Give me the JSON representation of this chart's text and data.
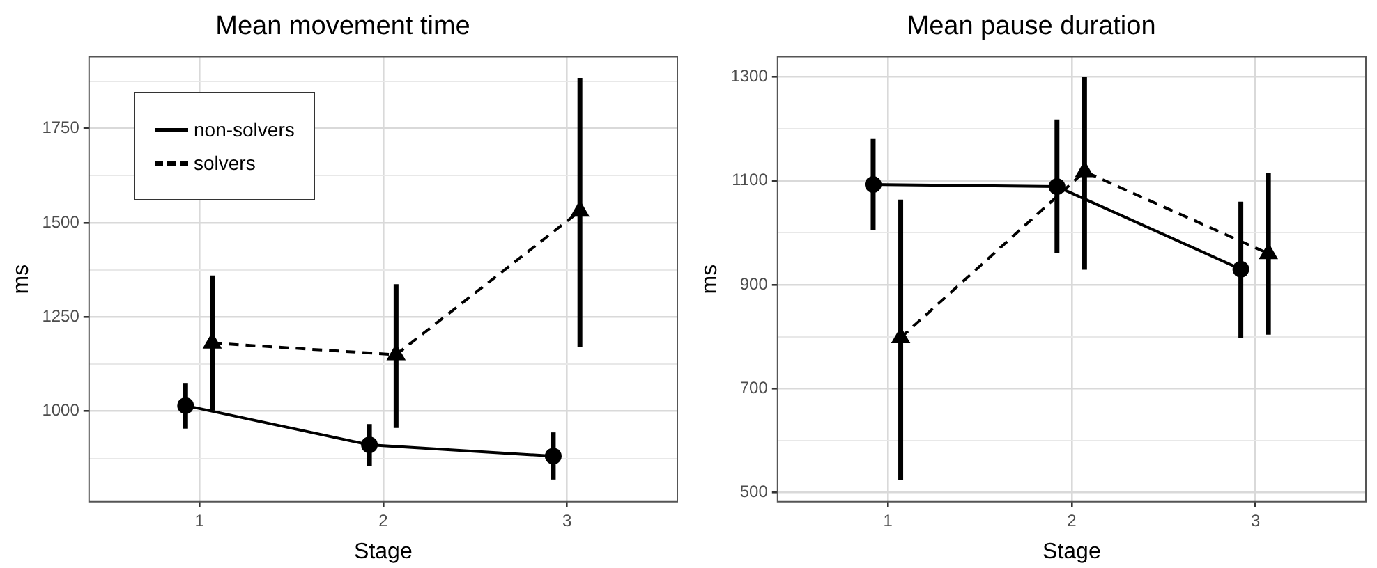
{
  "chart_data": [
    {
      "type": "line",
      "title": "Mean movement time",
      "xlabel": "Stage",
      "ylabel": "ms",
      "legend": "top left",
      "grid": true,
      "xlim": [
        0.4,
        3.6
      ],
      "xticks": [
        1,
        2,
        3
      ],
      "ylim": [
        760,
        1940
      ],
      "yticks": [
        {
          "value": 875,
          "label": null
        },
        1000,
        {
          "value": 1125,
          "label": null
        },
        1250,
        {
          "value": 1375,
          "label": null
        },
        1500,
        {
          "value": 1625,
          "label": null
        },
        1750,
        {
          "value": 1875,
          "label": null
        }
      ],
      "series": [
        {
          "name": "non-solvers",
          "color": "#000000",
          "marker": "circle",
          "line_style": "solid",
          "x": [
            0.925,
            1.925,
            2.925
          ],
          "values": [
            1015,
            911,
            881
          ],
          "errors": [
            [
              954,
              1075
            ],
            [
              854,
              966
            ],
            [
              819,
              944
            ]
          ]
        },
        {
          "name": "solvers",
          "color": "#000000",
          "marker": "triangle",
          "line_style": "dashed",
          "x": [
            1.07,
            2.07,
            3.07
          ],
          "values": [
            1181,
            1150,
            1531
          ],
          "errors": [
            [
              1002,
              1360
            ],
            [
              956,
              1337
            ],
            [
              1171,
              1884
            ]
          ]
        }
      ]
    },
    {
      "type": "line",
      "title": "Mean pause duration",
      "xlabel": "Stage",
      "ylabel": "ms",
      "grid": true,
      "xlim": [
        0.4,
        3.6
      ],
      "xticks": [
        1,
        2,
        3
      ],
      "ylim": [
        482,
        1339
      ],
      "yticks": [
        500,
        {
          "value": 600,
          "label": null
        },
        700,
        {
          "value": 800,
          "label": null
        },
        900,
        {
          "value": 1000,
          "label": null
        },
        1100,
        {
          "value": 1200,
          "label": null
        },
        1300
      ],
      "series": [
        {
          "color": "#000000",
          "marker": "circle",
          "line_style": "solid",
          "x": [
            0.92,
            1.92,
            2.92
          ],
          "values": [
            1093,
            1089,
            930
          ],
          "errors": [
            [
              1005,
              1182
            ],
            [
              961,
              1218
            ],
            [
              798,
              1060
            ]
          ]
        },
        {
          "color": "#000000",
          "marker": "triangle",
          "line_style": "dashed",
          "x": [
            1.07,
            2.07,
            3.07
          ],
          "values": [
            798,
            1118,
            960
          ],
          "errors": [
            [
              524,
              1064
            ],
            [
              929,
              1300
            ],
            [
              804,
              1116
            ]
          ]
        }
      ]
    }
  ]
}
